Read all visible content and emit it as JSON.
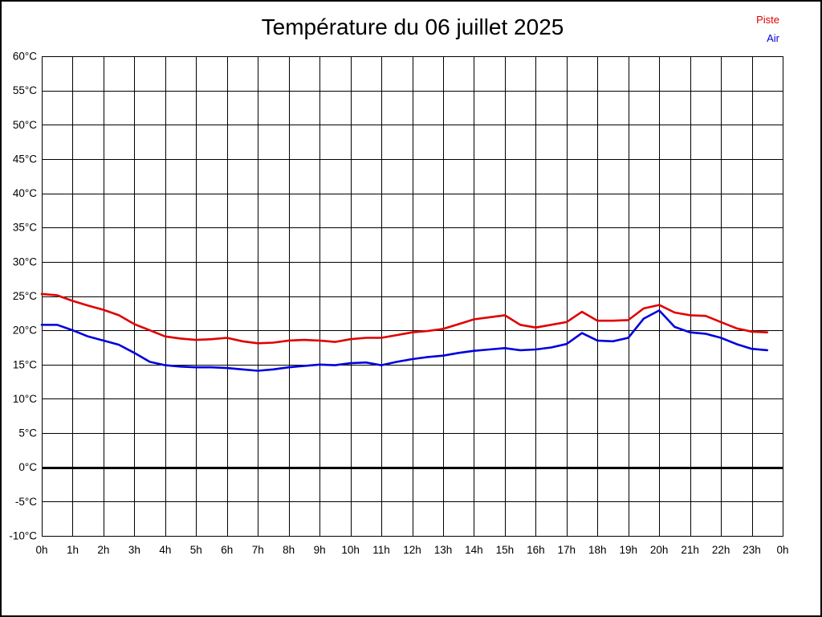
{
  "title": "Température du 06 juillet 2025",
  "legend": {
    "items": [
      {
        "label": "Piste",
        "color": "#e00000"
      },
      {
        "label": "Air",
        "color": "#0000dd"
      }
    ]
  },
  "chart_data": {
    "type": "line",
    "title": "Température du 06 juillet 2025",
    "xlabel": "",
    "ylabel": "",
    "x_unit": "hours",
    "xlim": [
      0,
      24
    ],
    "ylim": [
      -10,
      60
    ],
    "y_tick_step": 5,
    "grid": true,
    "zero_line": true,
    "legend_position": "top-right",
    "x_tick_labels": [
      "0h",
      "1h",
      "2h",
      "3h",
      "4h",
      "5h",
      "6h",
      "7h",
      "8h",
      "9h",
      "10h",
      "11h",
      "12h",
      "13h",
      "14h",
      "15h",
      "16h",
      "17h",
      "18h",
      "19h",
      "20h",
      "21h",
      "22h",
      "23h",
      "0h"
    ],
    "y_tick_labels": [
      "-10°C",
      "-5°C",
      "0°C",
      "5°C",
      "10°C",
      "15°C",
      "20°C",
      "25°C",
      "30°C",
      "35°C",
      "40°C",
      "45°C",
      "50°C",
      "55°C",
      "60°C"
    ],
    "x": [
      0,
      0.5,
      1,
      1.5,
      2,
      2.5,
      3,
      3.5,
      4,
      4.5,
      5,
      5.5,
      6,
      6.5,
      7,
      7.5,
      8,
      8.5,
      9,
      9.5,
      10,
      10.5,
      11,
      11.5,
      12,
      12.5,
      13,
      13.5,
      14,
      14.5,
      15,
      15.5,
      16,
      16.5,
      17,
      17.5,
      18,
      18.5,
      19,
      19.5,
      20,
      20.5,
      21,
      21.5,
      22,
      22.5,
      23,
      23.5
    ],
    "series": [
      {
        "name": "Piste",
        "color": "#e00000",
        "values": [
          25.3,
          25.1,
          24.3,
          23.6,
          23.0,
          22.2,
          20.9,
          20.0,
          19.1,
          18.8,
          18.6,
          18.7,
          18.9,
          18.4,
          18.1,
          18.2,
          18.5,
          18.6,
          18.5,
          18.3,
          18.7,
          18.9,
          18.9,
          19.3,
          19.7,
          19.9,
          20.2,
          20.9,
          21.6,
          21.9,
          22.2,
          20.8,
          20.4,
          20.8,
          21.2,
          22.7,
          21.4,
          21.4,
          21.5,
          23.2,
          23.7,
          22.6,
          22.2,
          22.1,
          21.2,
          20.3,
          19.8,
          19.7
        ]
      },
      {
        "name": "Air",
        "color": "#0000dd",
        "values": [
          20.8,
          20.8,
          20.0,
          19.1,
          18.5,
          17.9,
          16.7,
          15.4,
          14.9,
          14.7,
          14.6,
          14.6,
          14.5,
          14.3,
          14.1,
          14.3,
          14.6,
          14.8,
          15.0,
          14.9,
          15.2,
          15.3,
          14.9,
          15.4,
          15.8,
          16.1,
          16.3,
          16.7,
          17.0,
          17.2,
          17.4,
          17.1,
          17.2,
          17.5,
          18.0,
          19.6,
          18.5,
          18.4,
          18.9,
          21.7,
          22.9,
          20.5,
          19.7,
          19.5,
          18.9,
          18.0,
          17.3,
          17.1
        ]
      }
    ]
  }
}
